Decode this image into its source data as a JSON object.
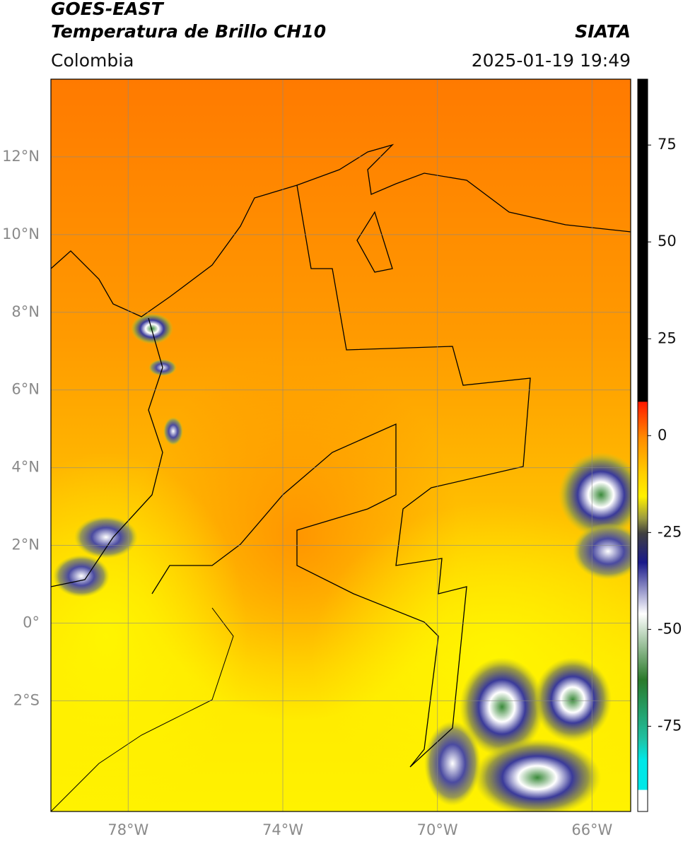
{
  "header": {
    "title": "GOES-EAST",
    "subtitle": "Temperatura de Brillo CH10",
    "source": "SIATA",
    "region": "Colombia",
    "timestamp": "2025-01-19 19:49"
  },
  "map": {
    "lonlim": [
      -80,
      -65
    ],
    "latlim": [
      -4.85,
      14
    ],
    "grid": true,
    "lonticks": [
      {
        "value": -78,
        "label": "78°W"
      },
      {
        "value": -74,
        "label": "74°W"
      },
      {
        "value": -70,
        "label": "70°W"
      },
      {
        "value": -66,
        "label": "66°W"
      }
    ],
    "latticks": [
      {
        "value": 12,
        "label": "12°N"
      },
      {
        "value": 10,
        "label": "10°N"
      },
      {
        "value": 8,
        "label": "8°N"
      },
      {
        "value": 6,
        "label": "6°N"
      },
      {
        "value": 4,
        "label": "4°N"
      },
      {
        "value": 2,
        "label": "2°N"
      },
      {
        "value": 0,
        "label": "0°"
      },
      {
        "value": -2,
        "label": "2°S"
      }
    ]
  },
  "colorbar": {
    "lim": [
      -97,
      92
    ],
    "ticks": [
      75,
      50,
      25,
      0,
      -25,
      -50,
      -75
    ]
  }
}
